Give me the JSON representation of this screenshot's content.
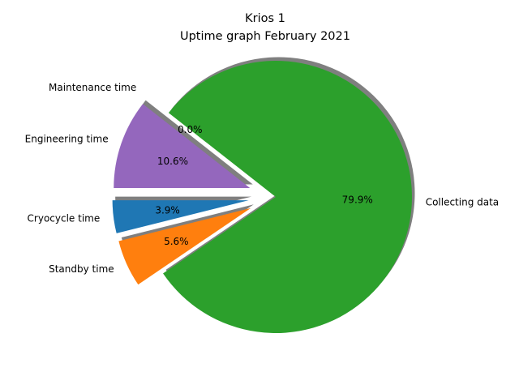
{
  "chart_data": {
    "type": "pie",
    "title": "Krios 1",
    "subtitle": "Uptime graph February 2021",
    "slices": [
      {
        "label": "Cryocycle time",
        "value": 3.9,
        "percent_label": "3.9%",
        "color": "#1f77b4",
        "exploded": true
      },
      {
        "label": "Standby time",
        "value": 5.6,
        "percent_label": "5.6%",
        "color": "#ff7f0e",
        "exploded": true
      },
      {
        "label": "Collecting data",
        "value": 79.9,
        "percent_label": "79.9%",
        "color": "#2ca02c",
        "exploded": false
      },
      {
        "label": "Maintenance time",
        "value": 0.0,
        "percent_label": "0.0%",
        "color": "#d62728",
        "exploded": true
      },
      {
        "label": "Engineering time",
        "value": 10.6,
        "percent_label": "10.6%",
        "color": "#9467bd",
        "exploded": true
      }
    ],
    "start_angle_deg": 180,
    "direction": "counterclockwise",
    "shadow": true,
    "legend": "none"
  }
}
